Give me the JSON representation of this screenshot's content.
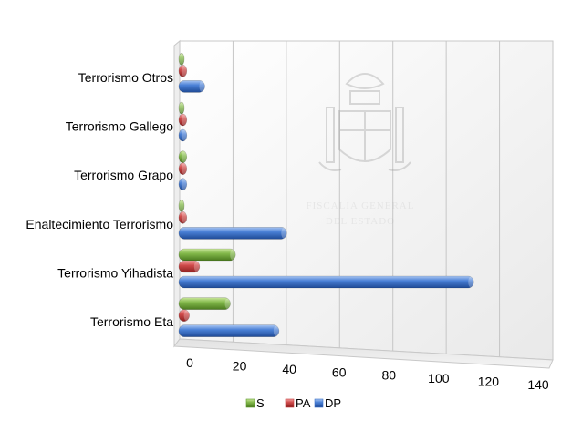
{
  "chart_data": {
    "type": "bar",
    "orientation": "horizontal",
    "categories": [
      "Terrorismo Eta",
      "Terrorismo Yihadista",
      "Enaltecimiento Terrorismo",
      "Terrorismo Grapo",
      "Terrorismo Gallego",
      "Terrorismo Otros"
    ],
    "series": [
      {
        "name": "S",
        "color": "#6aa033",
        "values": [
          18,
          20,
          0,
          1,
          0,
          0
        ]
      },
      {
        "name": "PA",
        "color": "#c0393b",
        "values": [
          2,
          6,
          1,
          1,
          1,
          1
        ]
      },
      {
        "name": "DP",
        "color": "#3a6fc6",
        "values": [
          37,
          113,
          40,
          1,
          1,
          8
        ]
      }
    ],
    "xlim": [
      0,
      140
    ],
    "xticks": [
      "0",
      "20",
      "40",
      "60",
      "80",
      "100",
      "120",
      "140"
    ],
    "legend_position": "bottom",
    "grid": true,
    "watermark": {
      "line1": "FISCALIA GENERAL",
      "line2": "DEL ESTADO"
    }
  }
}
